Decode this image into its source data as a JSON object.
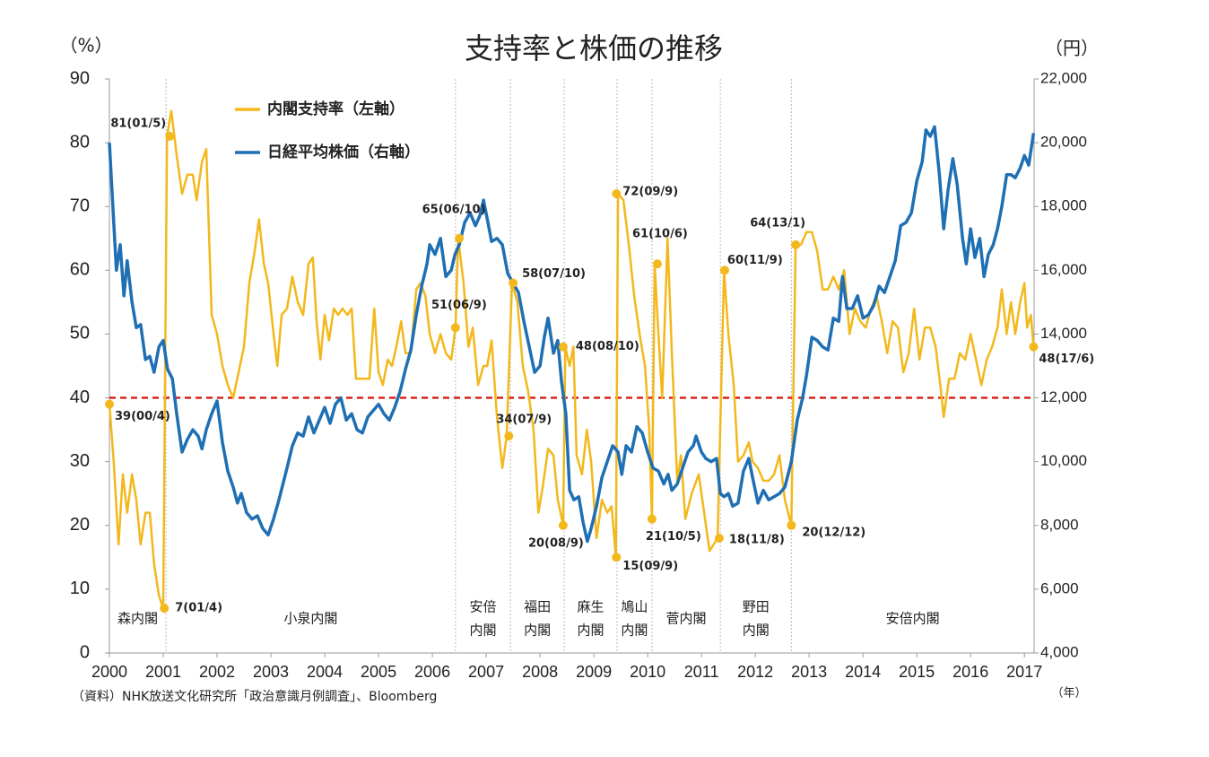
{
  "chart_data": {
    "type": "line",
    "title": "支持率と株価の推移",
    "y_unit_label": "（%）",
    "y2_unit_label": "（円）",
    "x_unit_label": "（年）",
    "source": "（資料）NHK放送文化研究所「政治意識月例調査」、Bloomberg",
    "xlim": [
      2000,
      2017.18
    ],
    "xticks": [
      2000,
      2001,
      2002,
      2003,
      2004,
      2005,
      2006,
      2007,
      2008,
      2009,
      2010,
      2011,
      2012,
      2013,
      2014,
      2015,
      2016,
      2017
    ],
    "ylim": [
      0,
      90
    ],
    "yticks": [
      0,
      10,
      20,
      30,
      40,
      50,
      60,
      70,
      80,
      90
    ],
    "y2lim": [
      4000,
      22000
    ],
    "y2ticks": [
      {
        "value": 4000,
        "label": "4,000"
      },
      {
        "value": 6000,
        "label": "6,000"
      },
      {
        "value": 8000,
        "label": "8,000"
      },
      {
        "value": 10000,
        "label": "10,000"
      },
      {
        "value": 12000,
        "label": "12,000"
      },
      {
        "value": 14000,
        "label": "14,000"
      },
      {
        "value": 16000,
        "label": "16,000"
      },
      {
        "value": 18000,
        "label": "18,000"
      },
      {
        "value": 20000,
        "label": "20,000"
      },
      {
        "value": 22000,
        "label": "22,000"
      }
    ],
    "reference_line": {
      "value": 40,
      "color": "#d9261c"
    },
    "legend": "upper left",
    "series": [
      {
        "name": "内閣支持率（左軸）",
        "color": "#f2b81c",
        "x": [
          2000.0,
          2000.08,
          2000.17,
          2000.25,
          2000.33,
          2000.42,
          2000.5,
          2000.58,
          2000.67,
          2000.75,
          2000.83,
          2000.92,
          2001.0,
          2001.07,
          2001.15,
          2001.25,
          2001.35,
          2001.45,
          2001.55,
          2001.62,
          2001.72,
          2001.8,
          2001.9,
          2002.0,
          2002.1,
          2002.2,
          2002.3,
          2002.4,
          2002.5,
          2002.6,
          2002.7,
          2002.78,
          2002.87,
          2002.95,
          2003.05,
          2003.12,
          2003.2,
          2003.3,
          2003.4,
          2003.5,
          2003.6,
          2003.7,
          2003.78,
          2003.85,
          2003.92,
          2004.0,
          2004.08,
          2004.17,
          2004.25,
          2004.33,
          2004.42,
          2004.5,
          2004.58,
          2004.67,
          2004.75,
          2004.83,
          2004.92,
          2005.0,
          2005.08,
          2005.17,
          2005.25,
          2005.33,
          2005.42,
          2005.5,
          2005.6,
          2005.7,
          2005.78,
          2005.87,
          2005.95,
          2006.05,
          2006.15,
          2006.25,
          2006.35,
          2006.43,
          2006.48,
          2006.58,
          2006.67,
          2006.75,
          2006.85,
          2006.95,
          2007.02,
          2007.1,
          2007.2,
          2007.3,
          2007.38,
          2007.48,
          2007.58,
          2007.68,
          2007.78,
          2007.88,
          2007.97,
          2008.05,
          2008.15,
          2008.25,
          2008.33,
          2008.43,
          2008.47,
          2008.55,
          2008.62,
          2008.68,
          2008.78,
          2008.87,
          2008.95,
          2009.05,
          2009.15,
          2009.25,
          2009.33,
          2009.41,
          2009.45,
          2009.55,
          2009.65,
          2009.75,
          2009.85,
          2009.95,
          2010.03,
          2010.08,
          2010.13,
          2010.2,
          2010.27,
          2010.37,
          2010.45,
          2010.55,
          2010.62,
          2010.7,
          2010.82,
          2010.95,
          2011.05,
          2011.15,
          2011.3,
          2011.42,
          2011.5,
          2011.6,
          2011.68,
          2011.78,
          2011.88,
          2011.95,
          2012.05,
          2012.15,
          2012.25,
          2012.35,
          2012.45,
          2012.55,
          2012.67,
          2012.75,
          2012.85,
          2012.95,
          2013.05,
          2013.15,
          2013.25,
          2013.35,
          2013.45,
          2013.55,
          2013.65,
          2013.75,
          2013.85,
          2013.95,
          2014.05,
          2014.15,
          2014.25,
          2014.35,
          2014.45,
          2014.55,
          2014.65,
          2014.75,
          2014.85,
          2014.95,
          2015.05,
          2015.15,
          2015.25,
          2015.35,
          2015.45,
          2015.5,
          2015.6,
          2015.7,
          2015.8,
          2015.9,
          2016.0,
          2016.1,
          2016.2,
          2016.3,
          2016.4,
          2016.5,
          2016.58,
          2016.67,
          2016.75,
          2016.83,
          2016.92,
          2017.0,
          2017.05,
          2017.12,
          2017.17
        ],
        "values": [
          39,
          30,
          17,
          28,
          22,
          28,
          24,
          17,
          22,
          22,
          14,
          9,
          7,
          81,
          85,
          78,
          72,
          75,
          75,
          71,
          77,
          79,
          53,
          50,
          45,
          42,
          40,
          44,
          48,
          58,
          63,
          68,
          61,
          58,
          50,
          45,
          53,
          54,
          59,
          55,
          53,
          61,
          62,
          52,
          46,
          53,
          49,
          54,
          53,
          54,
          53,
          54,
          43,
          43,
          43,
          43,
          54,
          44,
          42,
          46,
          45,
          48,
          52,
          47,
          47,
          57,
          58,
          56,
          50,
          47,
          50,
          47,
          46,
          51,
          65,
          58,
          48,
          51,
          42,
          45,
          45,
          49,
          37,
          29,
          34,
          58,
          55,
          45,
          41,
          35,
          22,
          26,
          32,
          31,
          24,
          20,
          48,
          45,
          48,
          31,
          28,
          35,
          30,
          18,
          24,
          22,
          23,
          15,
          72,
          71,
          64,
          56,
          50,
          45,
          35,
          21,
          61,
          50,
          40,
          65,
          47,
          27,
          31,
          21,
          25,
          28,
          22,
          16,
          18,
          60,
          50,
          42,
          30,
          31,
          33,
          30,
          29,
          27,
          27,
          28,
          31,
          24,
          20,
          64,
          64,
          66,
          66,
          63,
          57,
          57,
          59,
          57,
          60,
          50,
          54,
          52,
          51,
          54,
          56,
          52,
          47,
          52,
          51,
          44,
          47,
          54,
          46,
          51,
          51,
          48,
          41,
          37,
          43,
          43,
          47,
          46,
          50,
          46,
          42,
          46,
          48,
          51,
          57,
          50,
          55,
          50,
          55,
          58,
          51,
          53,
          48
        ]
      },
      {
        "name": "日経平均株価（右軸）",
        "color": "#1f6fb4",
        "axis": "y2",
        "x": [
          2000.0,
          2000.08,
          2000.13,
          2000.2,
          2000.27,
          2000.33,
          2000.42,
          2000.5,
          2000.58,
          2000.67,
          2000.75,
          2000.83,
          2000.92,
          2001.0,
          2001.08,
          2001.17,
          2001.25,
          2001.35,
          2001.45,
          2001.55,
          2001.65,
          2001.72,
          2001.8,
          2001.9,
          2002.0,
          2002.1,
          2002.2,
          2002.3,
          2002.38,
          2002.45,
          2002.55,
          2002.65,
          2002.75,
          2002.85,
          2002.95,
          2003.05,
          2003.15,
          2003.3,
          2003.4,
          2003.5,
          2003.6,
          2003.7,
          2003.8,
          2003.9,
          2004.0,
          2004.1,
          2004.2,
          2004.3,
          2004.4,
          2004.5,
          2004.6,
          2004.7,
          2004.8,
          2004.9,
          2005.0,
          2005.1,
          2005.2,
          2005.3,
          2005.4,
          2005.5,
          2005.6,
          2005.7,
          2005.8,
          2005.9,
          2005.95,
          2006.05,
          2006.15,
          2006.25,
          2006.35,
          2006.42,
          2006.5,
          2006.6,
          2006.7,
          2006.8,
          2006.88,
          2006.95,
          2007.02,
          2007.1,
          2007.2,
          2007.3,
          2007.4,
          2007.5,
          2007.6,
          2007.7,
          2007.8,
          2007.9,
          2008.0,
          2008.08,
          2008.15,
          2008.25,
          2008.33,
          2008.4,
          2008.48,
          2008.55,
          2008.63,
          2008.72,
          2008.8,
          2008.88,
          2008.95,
          2009.05,
          2009.15,
          2009.25,
          2009.35,
          2009.45,
          2009.52,
          2009.6,
          2009.7,
          2009.8,
          2009.9,
          2010.0,
          2010.1,
          2010.2,
          2010.3,
          2010.38,
          2010.45,
          2010.55,
          2010.65,
          2010.75,
          2010.85,
          2010.9,
          2011.0,
          2011.08,
          2011.18,
          2011.28,
          2011.35,
          2011.42,
          2011.5,
          2011.58,
          2011.68,
          2011.78,
          2011.88,
          2011.95,
          2012.05,
          2012.15,
          2012.25,
          2012.35,
          2012.45,
          2012.55,
          2012.67,
          2012.78,
          2012.88,
          2012.95,
          2013.05,
          2013.15,
          2013.25,
          2013.35,
          2013.45,
          2013.55,
          2013.62,
          2013.7,
          2013.8,
          2013.9,
          2014.0,
          2014.1,
          2014.2,
          2014.3,
          2014.4,
          2014.5,
          2014.6,
          2014.7,
          2014.8,
          2014.9,
          2015.0,
          2015.1,
          2015.17,
          2015.25,
          2015.33,
          2015.42,
          2015.5,
          2015.58,
          2015.67,
          2015.75,
          2015.85,
          2015.92,
          2016.0,
          2016.08,
          2016.17,
          2016.25,
          2016.33,
          2016.42,
          2016.5,
          2016.58,
          2016.67,
          2016.75,
          2016.83,
          2016.92,
          2017.0,
          2017.08,
          2017.17
        ],
        "values": [
          20000,
          17500,
          16000,
          16800,
          15200,
          16300,
          15000,
          14200,
          14300,
          13200,
          13300,
          12800,
          13600,
          13800,
          12900,
          12600,
          11500,
          10300,
          10700,
          11000,
          10800,
          10400,
          11000,
          11500,
          11900,
          10600,
          9700,
          9200,
          8700,
          9000,
          8400,
          8200,
          8300,
          7900,
          7700,
          8200,
          8800,
          9800,
          10500,
          10900,
          10800,
          11400,
          10900,
          11300,
          11700,
          11200,
          11800,
          12000,
          11300,
          11500,
          11000,
          10900,
          11400,
          11600,
          11800,
          11500,
          11300,
          11700,
          12200,
          12900,
          13500,
          14600,
          15500,
          16200,
          16800,
          16500,
          17000,
          15800,
          16000,
          16500,
          16800,
          17500,
          17800,
          17400,
          17700,
          18200,
          17600,
          16900,
          17000,
          16800,
          15900,
          15600,
          15300,
          14400,
          13600,
          12800,
          13000,
          13900,
          14500,
          13400,
          13800,
          12500,
          11500,
          9100,
          8800,
          8900,
          8100,
          7500,
          7900,
          8600,
          9500,
          10000,
          10500,
          10300,
          9600,
          10500,
          10300,
          11100,
          10900,
          10300,
          9800,
          9700,
          9300,
          9600,
          9100,
          9300,
          9800,
          10300,
          10500,
          10800,
          10300,
          10100,
          10000,
          10100,
          9000,
          8900,
          9000,
          8600,
          8700,
          9700,
          10100,
          9500,
          8700,
          9100,
          8800,
          8900,
          9000,
          9200,
          10000,
          11300,
          12000,
          12700,
          13900,
          13800,
          13600,
          13500,
          14500,
          14400,
          15800,
          14800,
          14800,
          15200,
          14500,
          14600,
          14900,
          15500,
          15300,
          15800,
          16300,
          17400,
          17500,
          17800,
          18800,
          19400,
          20400,
          20200,
          20500,
          19000,
          17300,
          18500,
          19500,
          18700,
          17000,
          16200,
          17300,
          16400,
          17000,
          15800,
          16500,
          16800,
          17300,
          18000,
          19000,
          19000,
          18900,
          19200,
          19600,
          19300,
          20300
        ]
      }
    ],
    "annotations": [
      {
        "x": 2000.0,
        "y": 39,
        "label": "39(00/4)"
      },
      {
        "x": 2001.12,
        "y": 81,
        "label": "81(01/5)"
      },
      {
        "x": 2001.02,
        "y": 7,
        "label": "7(01/4)"
      },
      {
        "x": 2006.5,
        "y": 65,
        "label": "65(06/10)"
      },
      {
        "x": 2006.43,
        "y": 51,
        "label": "51(06/9)"
      },
      {
        "x": 2007.42,
        "y": 34,
        "label": "34(07/9)"
      },
      {
        "x": 2007.5,
        "y": 58,
        "label": "58(07/10)"
      },
      {
        "x": 2008.43,
        "y": 48,
        "label": "48(08/10)"
      },
      {
        "x": 2008.43,
        "y": 20,
        "label": "20(08/9)"
      },
      {
        "x": 2009.42,
        "y": 72,
        "label": "72(09/9)"
      },
      {
        "x": 2009.42,
        "y": 15,
        "label": "15(09/9)"
      },
      {
        "x": 2010.18,
        "y": 61,
        "label": "61(10/6)"
      },
      {
        "x": 2010.08,
        "y": 21,
        "label": "21(10/5)"
      },
      {
        "x": 2011.43,
        "y": 60,
        "label": "60(11/9)"
      },
      {
        "x": 2011.33,
        "y": 18,
        "label": "18(11/8)"
      },
      {
        "x": 2012.75,
        "y": 64,
        "label": "64(13/1)"
      },
      {
        "x": 2012.67,
        "y": 20,
        "label": "20(12/12)"
      },
      {
        "x": 2017.17,
        "y": 48,
        "label": "48(17/6)"
      }
    ],
    "dividers": [
      2001.05,
      2006.43,
      2007.45,
      2008.45,
      2009.43,
      2010.08,
      2011.35,
      2012.67
    ],
    "cabinets": [
      [
        "森内閣"
      ],
      [
        "小泉内閣"
      ],
      [
        "安倍",
        "内閣"
      ],
      [
        "福田",
        "内閣"
      ],
      [
        "麻生",
        "内閣"
      ],
      [
        "鳩山",
        "内閣"
      ],
      [
        "菅内閣"
      ],
      [
        "野田",
        "内閣"
      ],
      [
        "安倍内閣"
      ]
    ]
  }
}
